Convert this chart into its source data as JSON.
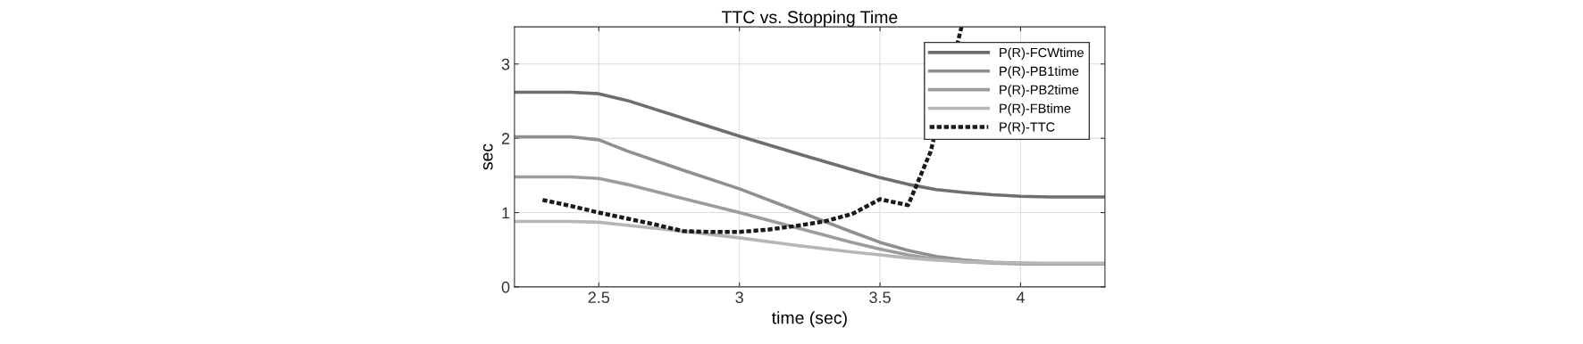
{
  "chart_data": {
    "type": "line",
    "title": "TTC vs. Stopping Time",
    "xlabel": "time (sec)",
    "ylabel": "sec",
    "xlim": [
      2.2,
      4.3
    ],
    "xticks": [
      2.5,
      3,
      3.5,
      4
    ],
    "ylim": [
      0,
      3.5
    ],
    "yticks": [
      0,
      1,
      2,
      3
    ],
    "grid": true,
    "legend": "top right",
    "marker": "none",
    "series": [
      {
        "name": "P(R)-FCWtime",
        "color": "#6e6e6e",
        "line_style": "solid",
        "x": [
          2.2,
          2.4,
          2.5,
          2.6,
          2.8,
          3.0,
          3.2,
          3.4,
          3.5,
          3.6,
          3.7,
          3.8,
          3.9,
          4.0,
          4.1,
          4.3
        ],
        "values": [
          2.62,
          2.62,
          2.6,
          2.51,
          2.27,
          2.03,
          1.8,
          1.58,
          1.47,
          1.38,
          1.31,
          1.27,
          1.24,
          1.22,
          1.21,
          1.21
        ]
      },
      {
        "name": "P(R)-PB1time",
        "color": "#8f8f8f",
        "line_style": "solid",
        "x": [
          2.2,
          2.4,
          2.5,
          2.6,
          2.8,
          3.0,
          3.2,
          3.4,
          3.5,
          3.6,
          3.7,
          3.8,
          3.9,
          4.0,
          4.1,
          4.3
        ],
        "values": [
          2.02,
          2.02,
          1.98,
          1.83,
          1.57,
          1.32,
          1.03,
          0.74,
          0.6,
          0.49,
          0.41,
          0.36,
          0.33,
          0.32,
          0.31,
          0.31
        ]
      },
      {
        "name": "P(R)-PB2time",
        "color": "#9c9c9c",
        "line_style": "solid",
        "x": [
          2.2,
          2.4,
          2.5,
          2.6,
          2.8,
          3.0,
          3.2,
          3.4,
          3.5,
          3.6,
          3.7,
          3.8,
          3.9,
          4.0,
          4.1,
          4.3
        ],
        "values": [
          1.48,
          1.48,
          1.46,
          1.38,
          1.19,
          1.0,
          0.8,
          0.6,
          0.51,
          0.43,
          0.37,
          0.34,
          0.32,
          0.31,
          0.31,
          0.31
        ]
      },
      {
        "name": "P(R)-FBtime",
        "color": "#b6b6b6",
        "line_style": "solid",
        "x": [
          2.2,
          2.4,
          2.5,
          2.6,
          2.8,
          3.0,
          3.2,
          3.4,
          3.5,
          3.6,
          3.7,
          3.8,
          4.0,
          4.3
        ],
        "values": [
          0.88,
          0.88,
          0.87,
          0.83,
          0.75,
          0.66,
          0.56,
          0.47,
          0.43,
          0.39,
          0.36,
          0.34,
          0.32,
          0.32
        ]
      },
      {
        "name": "P(R)-TTC",
        "color": "#1a1a1a",
        "line_style": "dotted",
        "x": [
          2.3,
          2.4,
          2.5,
          2.6,
          2.7,
          2.8,
          2.9,
          3.0,
          3.1,
          3.2,
          3.3,
          3.4,
          3.5,
          3.6,
          3.68,
          3.79
        ],
        "values": [
          1.17,
          1.09,
          1.0,
          0.92,
          0.84,
          0.75,
          0.74,
          0.74,
          0.77,
          0.82,
          0.88,
          0.98,
          1.18,
          1.1,
          1.82,
          3.5
        ]
      }
    ]
  }
}
